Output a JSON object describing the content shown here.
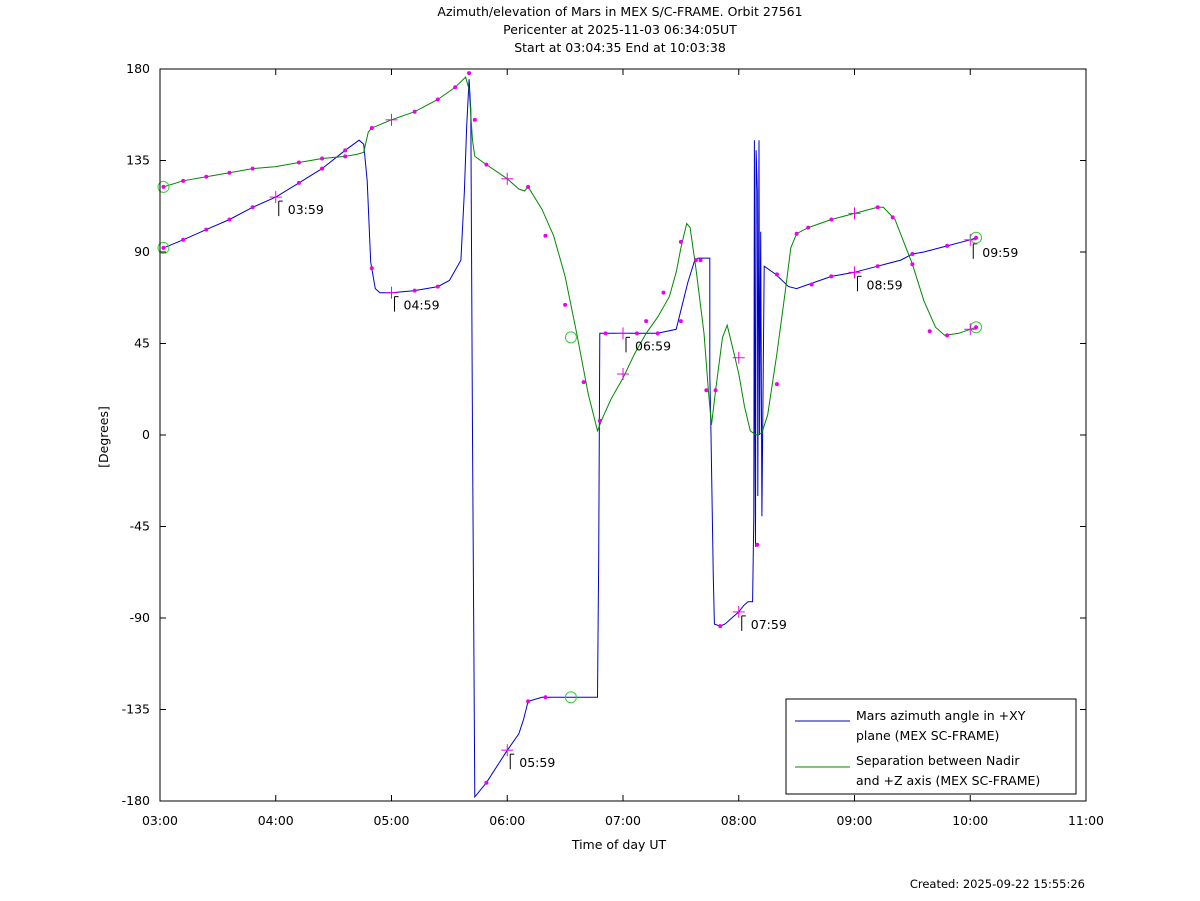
{
  "title": {
    "line1": "Azimuth/elevation of Mars in MEX S/C-FRAME.  Orbit 27561",
    "line2": "Pericenter at 2025-11-03 06:34:05UT",
    "line3": "Start at 03:04:35 End at 10:03:38"
  },
  "footer": "Created: 2025-09-22 15:55:26",
  "colors": {
    "azimuth": "#0000cc",
    "separation": "#008800",
    "markers": "#ee00ee",
    "circles": "#33cc33"
  },
  "chart_data": {
    "type": "line",
    "xlabel": "Time of day UT",
    "ylabel": "[Degrees]",
    "xlim": [
      3.0,
      11.0
    ],
    "ylim": [
      -180,
      180
    ],
    "x_ticks": [
      "03:00",
      "04:00",
      "05:00",
      "06:00",
      "07:00",
      "08:00",
      "09:00",
      "10:00",
      "11:00"
    ],
    "y_ticks": [
      "180",
      "135",
      "90",
      "45",
      "0",
      "-45",
      "-90",
      "-135",
      "-180"
    ],
    "legend_position": "bottom-right",
    "series": [
      {
        "name": "Mars azimuth angle in +XY plane (MEX SC-FRAME)",
        "legend_lines": [
          "Mars azimuth angle in +XY",
          "plane (MEX SC-FRAME)"
        ],
        "color_key": "azimuth",
        "points": [
          [
            3.03,
            92
          ],
          [
            3.2,
            96
          ],
          [
            3.4,
            101
          ],
          [
            3.6,
            106
          ],
          [
            3.8,
            112
          ],
          [
            4.0,
            117
          ],
          [
            4.2,
            124
          ],
          [
            4.4,
            131
          ],
          [
            4.6,
            140
          ],
          [
            4.72,
            145
          ],
          [
            4.76,
            143
          ],
          [
            4.79,
            125
          ],
          [
            4.82,
            85
          ],
          [
            4.86,
            72
          ],
          [
            4.9,
            70
          ],
          [
            5.0,
            70
          ],
          [
            5.2,
            71
          ],
          [
            5.4,
            73
          ],
          [
            5.5,
            76
          ],
          [
            5.6,
            86
          ],
          [
            5.63,
            120
          ],
          [
            5.65,
            152
          ],
          [
            5.67,
            175
          ],
          [
            5.685,
            160
          ],
          [
            5.7,
            0
          ],
          [
            5.72,
            -178
          ],
          [
            5.82,
            -171
          ],
          [
            6.0,
            -155
          ],
          [
            6.1,
            -147
          ],
          [
            6.14,
            -140
          ],
          [
            6.18,
            -131
          ],
          [
            6.3,
            -129
          ],
          [
            6.5,
            -129
          ],
          [
            6.78,
            -129
          ],
          [
            6.79,
            -60
          ],
          [
            6.8,
            50
          ],
          [
            7.0,
            50
          ],
          [
            7.2,
            50
          ],
          [
            7.3,
            50
          ],
          [
            7.46,
            52
          ],
          [
            7.56,
            75
          ],
          [
            7.62,
            86
          ],
          [
            7.65,
            87
          ],
          [
            7.75,
            87
          ],
          [
            7.75,
            30
          ],
          [
            7.76,
            0
          ],
          [
            7.78,
            -70
          ],
          [
            7.79,
            -93
          ],
          [
            7.84,
            -94
          ],
          [
            7.88,
            -93
          ],
          [
            7.94,
            -90
          ],
          [
            8.0,
            -87
          ],
          [
            8.04,
            -84
          ],
          [
            8.08,
            -82
          ],
          [
            8.12,
            -82
          ],
          [
            8.13,
            -40
          ],
          [
            8.135,
            145
          ],
          [
            8.14,
            0
          ],
          [
            8.145,
            -55
          ],
          [
            8.15,
            140
          ],
          [
            8.16,
            120
          ],
          [
            8.165,
            -30
          ],
          [
            8.175,
            145
          ],
          [
            8.18,
            0
          ],
          [
            8.19,
            100
          ],
          [
            8.2,
            -40
          ],
          [
            8.22,
            83
          ],
          [
            8.32,
            79
          ],
          [
            8.43,
            73
          ],
          [
            8.5,
            72
          ],
          [
            8.6,
            74
          ],
          [
            8.8,
            78
          ],
          [
            9.0,
            80
          ],
          [
            9.2,
            83
          ],
          [
            9.4,
            86
          ],
          [
            9.5,
            89
          ],
          [
            9.6,
            90
          ],
          [
            9.8,
            93
          ],
          [
            10.0,
            96
          ],
          [
            10.05,
            97
          ]
        ],
        "markers": [
          [
            3.03,
            92
          ],
          [
            3.2,
            96
          ],
          [
            3.4,
            101
          ],
          [
            3.6,
            106
          ],
          [
            3.8,
            112
          ],
          [
            4.2,
            124
          ],
          [
            4.4,
            131
          ],
          [
            4.6,
            140
          ],
          [
            4.83,
            82
          ],
          [
            5.2,
            71
          ],
          [
            5.4,
            73
          ],
          [
            5.72,
            155
          ],
          [
            5.82,
            -171
          ],
          [
            6.18,
            -131
          ],
          [
            6.33,
            -129
          ],
          [
            6.85,
            50
          ],
          [
            7.12,
            50
          ],
          [
            7.3,
            50
          ],
          [
            7.5,
            56
          ],
          [
            7.63,
            86
          ],
          [
            7.84,
            -94
          ],
          [
            8.16,
            -54
          ],
          [
            8.33,
            79
          ],
          [
            8.63,
            74
          ],
          [
            8.8,
            78
          ],
          [
            9.2,
            83
          ],
          [
            9.5,
            89
          ],
          [
            9.8,
            93
          ],
          [
            10.05,
            97
          ]
        ],
        "crosses": [
          [
            4.0,
            117
          ],
          [
            5.0,
            70
          ],
          [
            6.0,
            -155
          ],
          [
            7.0,
            50
          ],
          [
            8.0,
            -87
          ],
          [
            9.0,
            80
          ],
          [
            10.0,
            96
          ]
        ],
        "circles": [
          [
            3.03,
            92
          ],
          [
            6.55,
            -129
          ]
        ],
        "time_labels": [
          {
            "x": 4.0,
            "y": 117,
            "text": "03:59"
          },
          {
            "x": 5.0,
            "y": 70,
            "text": "04:59"
          },
          {
            "x": 6.0,
            "y": -155,
            "text": "05:59"
          },
          {
            "x": 7.0,
            "y": 50,
            "text": "06:59"
          },
          {
            "x": 8.0,
            "y": -87,
            "text": "07:59"
          },
          {
            "x": 9.0,
            "y": 80,
            "text": "08:59"
          },
          {
            "x": 10.0,
            "y": 96,
            "text": "09:59"
          }
        ]
      },
      {
        "name": "Separation between Nadir and +Z axis (MEX SC-FRAME)",
        "legend_lines": [
          "Separation between Nadir",
          "and +Z axis (MEX SC-FRAME)"
        ],
        "color_key": "separation",
        "points": [
          [
            3.03,
            122
          ],
          [
            3.2,
            125
          ],
          [
            3.4,
            127
          ],
          [
            3.6,
            129
          ],
          [
            3.8,
            131
          ],
          [
            4.0,
            132
          ],
          [
            4.2,
            134
          ],
          [
            4.4,
            136
          ],
          [
            4.6,
            137
          ],
          [
            4.7,
            138
          ],
          [
            4.76,
            139
          ],
          [
            4.8,
            149
          ],
          [
            4.83,
            151
          ],
          [
            5.0,
            155
          ],
          [
            5.2,
            159
          ],
          [
            5.4,
            165
          ],
          [
            5.55,
            171
          ],
          [
            5.64,
            176
          ],
          [
            5.67,
            170
          ],
          [
            5.7,
            145
          ],
          [
            5.72,
            137
          ],
          [
            5.82,
            133
          ],
          [
            6.0,
            126
          ],
          [
            6.1,
            121
          ],
          [
            6.15,
            120
          ],
          [
            6.18,
            122
          ],
          [
            6.3,
            111
          ],
          [
            6.4,
            98
          ],
          [
            6.5,
            78
          ],
          [
            6.6,
            50
          ],
          [
            6.7,
            20
          ],
          [
            6.78,
            2
          ],
          [
            6.82,
            8
          ],
          [
            6.9,
            18
          ],
          [
            7.0,
            28
          ],
          [
            7.1,
            40
          ],
          [
            7.2,
            50
          ],
          [
            7.3,
            58
          ],
          [
            7.4,
            68
          ],
          [
            7.46,
            80
          ],
          [
            7.5,
            92
          ],
          [
            7.55,
            104
          ],
          [
            7.58,
            102
          ],
          [
            7.63,
            82
          ],
          [
            7.7,
            50
          ],
          [
            7.74,
            20
          ],
          [
            7.765,
            5
          ],
          [
            7.8,
            22
          ],
          [
            7.86,
            48
          ],
          [
            7.9,
            54
          ],
          [
            7.96,
            40
          ],
          [
            8.0,
            30
          ],
          [
            8.05,
            14
          ],
          [
            8.1,
            2
          ],
          [
            8.15,
            0
          ],
          [
            8.2,
            1
          ],
          [
            8.25,
            10
          ],
          [
            8.33,
            40
          ],
          [
            8.4,
            70
          ],
          [
            8.45,
            92
          ],
          [
            8.5,
            99
          ],
          [
            8.6,
            102
          ],
          [
            8.8,
            106
          ],
          [
            9.0,
            109
          ],
          [
            9.2,
            112
          ],
          [
            9.25,
            112
          ],
          [
            9.35,
            106
          ],
          [
            9.5,
            84
          ],
          [
            9.6,
            66
          ],
          [
            9.7,
            53
          ],
          [
            9.78,
            49
          ],
          [
            9.9,
            50
          ],
          [
            10.0,
            52
          ],
          [
            10.05,
            53
          ]
        ],
        "markers": [
          [
            3.03,
            122
          ],
          [
            3.2,
            125
          ],
          [
            3.4,
            127
          ],
          [
            3.6,
            129
          ],
          [
            3.8,
            131
          ],
          [
            4.2,
            134
          ],
          [
            4.4,
            136
          ],
          [
            4.6,
            137
          ],
          [
            4.83,
            151
          ],
          [
            5.2,
            159
          ],
          [
            5.4,
            165
          ],
          [
            5.55,
            171
          ],
          [
            5.67,
            178
          ],
          [
            5.82,
            133
          ],
          [
            6.18,
            122
          ],
          [
            6.33,
            98
          ],
          [
            6.5,
            64
          ],
          [
            6.66,
            26
          ],
          [
            6.8,
            7
          ],
          [
            7.2,
            56
          ],
          [
            7.35,
            70
          ],
          [
            7.5,
            95
          ],
          [
            7.67,
            86
          ],
          [
            7.72,
            22
          ],
          [
            7.8,
            22
          ],
          [
            8.33,
            25
          ],
          [
            8.5,
            99
          ],
          [
            8.6,
            102
          ],
          [
            8.8,
            106
          ],
          [
            9.2,
            112
          ],
          [
            9.33,
            107
          ],
          [
            9.5,
            84
          ],
          [
            9.65,
            51
          ],
          [
            9.8,
            49
          ],
          [
            10.05,
            53
          ]
        ],
        "crosses": [
          [
            5.0,
            155
          ],
          [
            6.0,
            126
          ],
          [
            7.0,
            30
          ],
          [
            8.0,
            38
          ],
          [
            9.0,
            109
          ],
          [
            10.0,
            52
          ]
        ],
        "circles": [
          [
            3.03,
            122
          ],
          [
            6.55,
            48
          ],
          [
            10.05,
            97
          ],
          [
            10.05,
            53
          ]
        ]
      }
    ]
  }
}
